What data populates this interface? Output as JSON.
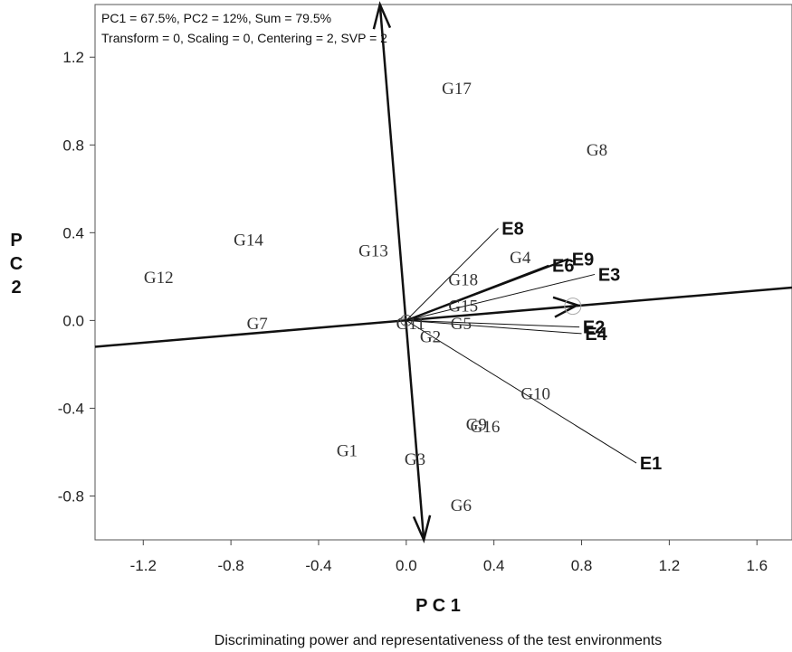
{
  "chart_data": {
    "type": "scatter",
    "title": "Discriminating power and representativeness of the test environments",
    "xlabel": "P C 1",
    "ylabel": [
      "P",
      "C",
      "2"
    ],
    "xlim": [
      -1.42,
      1.76
    ],
    "ylim": [
      -1.0,
      1.44
    ],
    "x_ticks": [
      -1.2,
      -0.8,
      -0.4,
      0.0,
      0.4,
      0.8,
      1.2,
      1.6
    ],
    "y_ticks": [
      -0.8,
      -0.4,
      0.0,
      0.4,
      0.8,
      1.2
    ],
    "x_tick_labels": [
      "-1.2",
      "-0.8",
      "-0.4",
      "0.0",
      "0.4",
      "0.8",
      "1.2",
      "1.6"
    ],
    "y_tick_labels": [
      "-0.8",
      "-0.4",
      "0.0",
      "0.4",
      "0.8",
      "1.2"
    ],
    "info_lines": [
      "PC1 = 67.5%, PC2 = 12%, Sum = 79.5%",
      "Transform = 0, Scaling = 0, Centering = 2, SVP = 2"
    ],
    "genotypes": [
      {
        "label": "G17",
        "x": 0.23,
        "y": 1.06
      },
      {
        "label": "G8",
        "x": 0.87,
        "y": 0.78
      },
      {
        "label": "G14",
        "x": -0.72,
        "y": 0.37
      },
      {
        "label": "G13",
        "x": -0.15,
        "y": 0.32
      },
      {
        "label": "G12",
        "x": -1.13,
        "y": 0.2
      },
      {
        "label": "G4",
        "x": 0.52,
        "y": 0.29
      },
      {
        "label": "G18",
        "x": 0.26,
        "y": 0.19
      },
      {
        "label": "G15",
        "x": 0.26,
        "y": 0.07
      },
      {
        "label": "G7",
        "x": -0.68,
        "y": -0.01
      },
      {
        "label": "G5",
        "x": 0.25,
        "y": -0.01
      },
      {
        "label": "G11",
        "x": 0.02,
        "y": -0.01
      },
      {
        "label": "G2",
        "x": 0.11,
        "y": -0.07
      },
      {
        "label": "G10",
        "x": 0.59,
        "y": -0.33
      },
      {
        "label": "G9",
        "x": 0.32,
        "y": -0.47
      },
      {
        "label": "G16",
        "x": 0.36,
        "y": -0.48
      },
      {
        "label": "G1",
        "x": -0.27,
        "y": -0.59
      },
      {
        "label": "G3",
        "x": 0.04,
        "y": -0.63
      },
      {
        "label": "G6",
        "x": 0.25,
        "y": -0.84
      }
    ],
    "environments": [
      {
        "label": "E8",
        "x": 0.42,
        "y": 0.42
      },
      {
        "label": "E9",
        "x": 0.74,
        "y": 0.28
      },
      {
        "label": "E6",
        "x": 0.65,
        "y": 0.25
      },
      {
        "label": "E3",
        "x": 0.86,
        "y": 0.21
      },
      {
        "label": "E2",
        "x": 0.79,
        "y": -0.03
      },
      {
        "label": "E4",
        "x": 0.8,
        "y": -0.06
      },
      {
        "label": "E1",
        "x": 1.05,
        "y": -0.65
      }
    ],
    "average_environment_axis": {
      "from": [
        -1.42,
        -0.12
      ],
      "to": [
        1.76,
        0.15
      ],
      "arrow_at": [
        0.78,
        0.07
      ]
    },
    "perpendicular_axis": {
      "from": [
        -0.12,
        1.44
      ],
      "to": [
        0.08,
        -1.0
      ]
    },
    "average_environment_point": {
      "x": 0.76,
      "y": 0.065
    },
    "origin_point": {
      "x": 0.0,
      "y": 0.0
    }
  }
}
